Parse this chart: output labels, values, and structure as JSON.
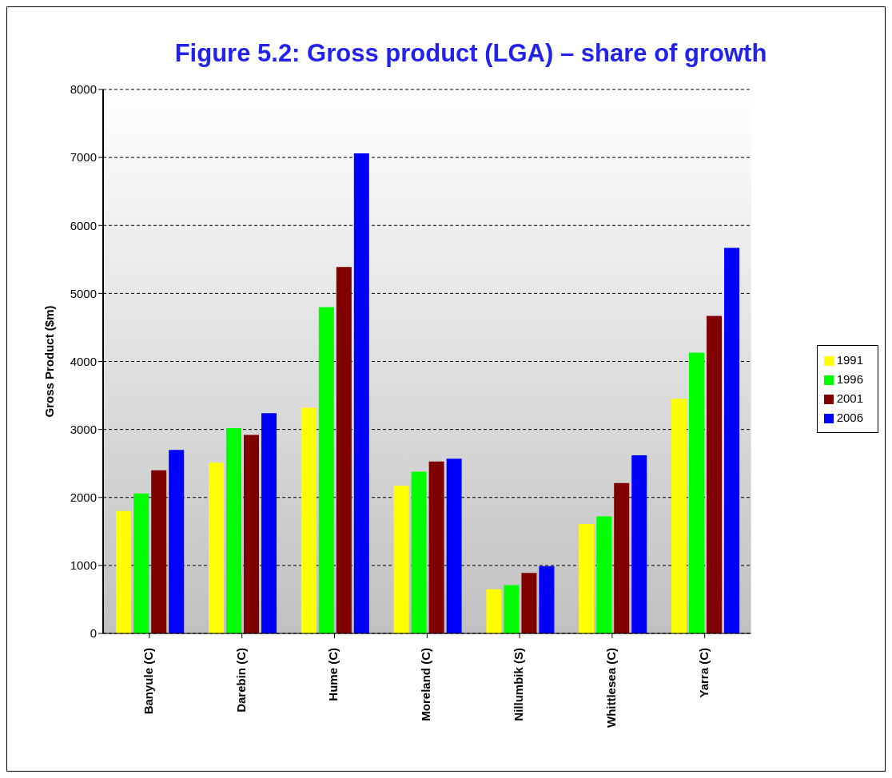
{
  "chart_data": {
    "type": "bar",
    "title": "Figure 5.2:  Gross product (LGA) – share of growth",
    "ylabel": "Gross Product  ($m)",
    "categories": [
      "Banyule (C)",
      "Darebin (C)",
      "Hume (C)",
      "Moreland (C)",
      "Nillumbik (S)",
      "Whittlesea (C)",
      "Yarra (C)"
    ],
    "series": [
      {
        "name": "1991",
        "color": "#ffff00",
        "values": [
          1800,
          2510,
          3320,
          2170,
          650,
          1610,
          3450
        ]
      },
      {
        "name": "1996",
        "color": "#00ff00",
        "values": [
          2060,
          3020,
          4800,
          2380,
          710,
          1720,
          4130
        ]
      },
      {
        "name": "2001",
        "color": "#800000",
        "values": [
          2400,
          2920,
          5390,
          2530,
          890,
          2210,
          4670
        ]
      },
      {
        "name": "2006",
        "color": "#0000ff",
        "values": [
          2700,
          3240,
          7060,
          2570,
          990,
          2620,
          5670
        ]
      }
    ],
    "ylim": [
      0,
      8000
    ],
    "yticks": [
      0,
      1000,
      2000,
      3000,
      4000,
      5000,
      6000,
      7000,
      8000
    ],
    "grid": "y",
    "legend": "right"
  }
}
